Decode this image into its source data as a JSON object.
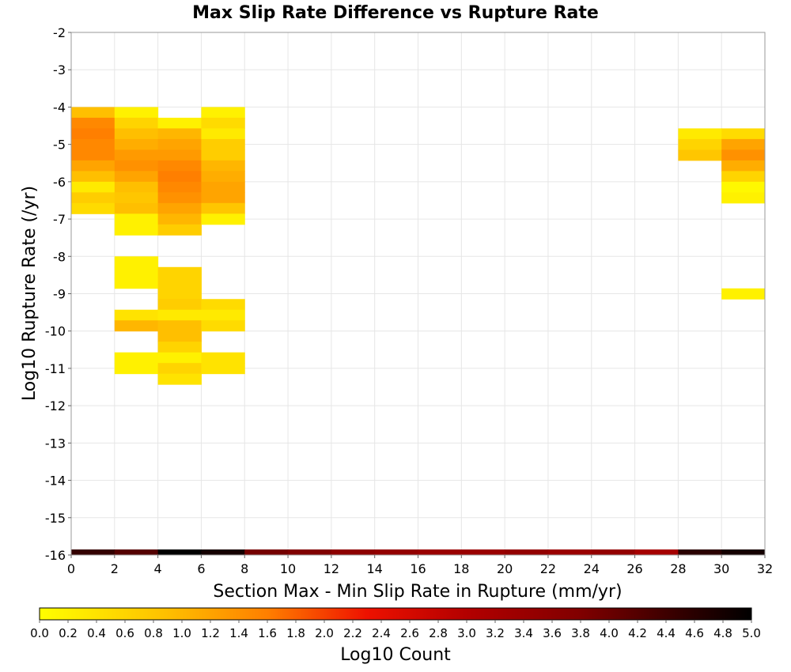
{
  "chart_data": {
    "type": "heatmap",
    "title": "Max Slip Rate Difference vs Rupture Rate",
    "xlabel": "Section Max - Min Slip Rate in Rupture (mm/yr)",
    "ylabel": "Log10 Rupture Rate (/yr)",
    "xlim": [
      0,
      32
    ],
    "ylim": [
      -16,
      -2
    ],
    "x_ticks": [
      "0",
      "2",
      "4",
      "6",
      "8",
      "10",
      "12",
      "14",
      "16",
      "18",
      "20",
      "22",
      "24",
      "26",
      "28",
      "30",
      "32"
    ],
    "y_ticks": [
      "-2",
      "-3",
      "-4",
      "-5",
      "-6",
      "-7",
      "-8",
      "-9",
      "-10",
      "-11",
      "-12",
      "-13",
      "-14",
      "-15",
      "-16"
    ],
    "grid": true,
    "colorbar": {
      "label": "Log10 Count",
      "range": [
        0.0,
        5.0
      ],
      "ticks": [
        "0.0",
        "0.2",
        "0.4",
        "0.6",
        "0.8",
        "1.0",
        "1.2",
        "1.4",
        "1.6",
        "1.8",
        "2.0",
        "2.2",
        "2.4",
        "2.6",
        "2.8",
        "3.0",
        "3.2",
        "3.4",
        "3.6",
        "3.8",
        "4.0",
        "4.2",
        "4.4",
        "4.6",
        "4.8",
        "5.0"
      ],
      "stops": [
        {
          "v": 0.0,
          "color": "#ffff00"
        },
        {
          "v": 0.9,
          "color": "#ffbf00"
        },
        {
          "v": 1.6,
          "color": "#ff7f00"
        },
        {
          "v": 2.3,
          "color": "#ee1100"
        },
        {
          "v": 3.0,
          "color": "#b30000"
        },
        {
          "v": 3.8,
          "color": "#800000"
        },
        {
          "v": 4.5,
          "color": "#330000"
        },
        {
          "v": 5.0,
          "color": "#000000"
        }
      ]
    },
    "x_bin_width": 2,
    "y_bin_height": 0.2857,
    "cells": [
      {
        "x0": 0,
        "y0": -4.0,
        "v": 0.9
      },
      {
        "x0": 0,
        "y0": -4.2857,
        "v": 1.5
      },
      {
        "x0": 0,
        "y0": -4.5714,
        "v": 1.6
      },
      {
        "x0": 0,
        "y0": -4.8571,
        "v": 1.5
      },
      {
        "x0": 0,
        "y0": -5.1429,
        "v": 1.5
      },
      {
        "x0": 0,
        "y0": -5.4286,
        "v": 1.2
      },
      {
        "x0": 0,
        "y0": -5.7143,
        "v": 0.9
      },
      {
        "x0": 0,
        "y0": -6.0,
        "v": 0.3
      },
      {
        "x0": 0,
        "y0": -6.2857,
        "v": 0.7
      },
      {
        "x0": 0,
        "y0": -6.5714,
        "v": 0.5
      },
      {
        "x0": 2,
        "y0": -4.0,
        "v": 0.2
      },
      {
        "x0": 2,
        "y0": -4.2857,
        "v": 0.6
      },
      {
        "x0": 2,
        "y0": -4.5714,
        "v": 0.9
      },
      {
        "x0": 2,
        "y0": -4.8571,
        "v": 1.1
      },
      {
        "x0": 2,
        "y0": -5.1429,
        "v": 1.3
      },
      {
        "x0": 2,
        "y0": -5.4286,
        "v": 1.4
      },
      {
        "x0": 2,
        "y0": -5.7143,
        "v": 1.2
      },
      {
        "x0": 2,
        "y0": -6.0,
        "v": 0.9
      },
      {
        "x0": 2,
        "y0": -6.2857,
        "v": 0.8
      },
      {
        "x0": 2,
        "y0": -6.5714,
        "v": 0.9
      },
      {
        "x0": 2,
        "y0": -6.8571,
        "v": 0.2
      },
      {
        "x0": 2,
        "y0": -7.1429,
        "v": 0.2
      },
      {
        "x0": 2,
        "y0": -8.0,
        "v": 0.2
      },
      {
        "x0": 2,
        "y0": -8.2857,
        "v": 0.2
      },
      {
        "x0": 2,
        "y0": -8.5714,
        "v": 0.2
      },
      {
        "x0": 2,
        "y0": -9.4286,
        "v": 0.4
      },
      {
        "x0": 2,
        "y0": -9.7143,
        "v": 1.0
      },
      {
        "x0": 2,
        "y0": -10.5714,
        "v": 0.2
      },
      {
        "x0": 2,
        "y0": -10.8571,
        "v": 0.2
      },
      {
        "x0": 4,
        "y0": -4.2857,
        "v": 0.2
      },
      {
        "x0": 4,
        "y0": -4.5714,
        "v": 1.0
      },
      {
        "x0": 4,
        "y0": -4.8571,
        "v": 1.2
      },
      {
        "x0": 4,
        "y0": -5.1429,
        "v": 1.3
      },
      {
        "x0": 4,
        "y0": -5.4286,
        "v": 1.5
      },
      {
        "x0": 4,
        "y0": -5.7143,
        "v": 1.6
      },
      {
        "x0": 4,
        "y0": -6.0,
        "v": 1.5
      },
      {
        "x0": 4,
        "y0": -6.2857,
        "v": 1.4
      },
      {
        "x0": 4,
        "y0": -6.5714,
        "v": 1.2
      },
      {
        "x0": 4,
        "y0": -6.8571,
        "v": 1.0
      },
      {
        "x0": 4,
        "y0": -7.1429,
        "v": 0.7
      },
      {
        "x0": 4,
        "y0": -8.2857,
        "v": 0.6
      },
      {
        "x0": 4,
        "y0": -8.5714,
        "v": 0.6
      },
      {
        "x0": 4,
        "y0": -8.8571,
        "v": 0.6
      },
      {
        "x0": 4,
        "y0": -9.1429,
        "v": 0.7
      },
      {
        "x0": 4,
        "y0": -9.4286,
        "v": 0.3
      },
      {
        "x0": 4,
        "y0": -9.7143,
        "v": 0.9
      },
      {
        "x0": 4,
        "y0": -10.0,
        "v": 0.9
      },
      {
        "x0": 4,
        "y0": -10.2857,
        "v": 0.6
      },
      {
        "x0": 4,
        "y0": -10.5714,
        "v": 0.2
      },
      {
        "x0": 4,
        "y0": -10.8571,
        "v": 0.6
      },
      {
        "x0": 4,
        "y0": -11.1429,
        "v": 0.4
      },
      {
        "x0": 6,
        "y0": -4.0,
        "v": 0.2
      },
      {
        "x0": 6,
        "y0": -4.2857,
        "v": 0.5
      },
      {
        "x0": 6,
        "y0": -4.5714,
        "v": 0.3
      },
      {
        "x0": 6,
        "y0": -4.8571,
        "v": 0.7
      },
      {
        "x0": 6,
        "y0": -5.1429,
        "v": 0.7
      },
      {
        "x0": 6,
        "y0": -5.4286,
        "v": 1.0
      },
      {
        "x0": 6,
        "y0": -5.7143,
        "v": 1.1
      },
      {
        "x0": 6,
        "y0": -6.0,
        "v": 1.2
      },
      {
        "x0": 6,
        "y0": -6.2857,
        "v": 1.2
      },
      {
        "x0": 6,
        "y0": -6.5714,
        "v": 0.8
      },
      {
        "x0": 6,
        "y0": -6.8571,
        "v": 0.2
      },
      {
        "x0": 6,
        "y0": -9.1429,
        "v": 0.5
      },
      {
        "x0": 6,
        "y0": -9.4286,
        "v": 0.3
      },
      {
        "x0": 6,
        "y0": -9.7143,
        "v": 0.5
      },
      {
        "x0": 6,
        "y0": -10.5714,
        "v": 0.4
      },
      {
        "x0": 6,
        "y0": -10.8571,
        "v": 0.4
      },
      {
        "x0": 28,
        "y0": -4.5714,
        "v": 0.3
      },
      {
        "x0": 28,
        "y0": -4.8571,
        "v": 0.6
      },
      {
        "x0": 28,
        "y0": -5.1429,
        "v": 0.8
      },
      {
        "x0": 30,
        "y0": -4.5714,
        "v": 0.5
      },
      {
        "x0": 30,
        "y0": -4.8571,
        "v": 1.2
      },
      {
        "x0": 30,
        "y0": -5.1429,
        "v": 1.4
      },
      {
        "x0": 30,
        "y0": -5.4286,
        "v": 1.1
      },
      {
        "x0": 30,
        "y0": -5.7143,
        "v": 0.6
      },
      {
        "x0": 30,
        "y0": -6.0,
        "v": 0.1
      },
      {
        "x0": 30,
        "y0": -6.2857,
        "v": 0.2
      },
      {
        "x0": 30,
        "y0": -8.8571,
        "v": 0.2
      }
    ],
    "bottom_row": {
      "y0": -16.0,
      "values": [
        4.5,
        4.2,
        5.0,
        4.8,
        3.9,
        3.8,
        3.6,
        3.5,
        3.4,
        3.4,
        3.5,
        3.4,
        3.5,
        3.2,
        4.6,
        4.8
      ]
    }
  }
}
